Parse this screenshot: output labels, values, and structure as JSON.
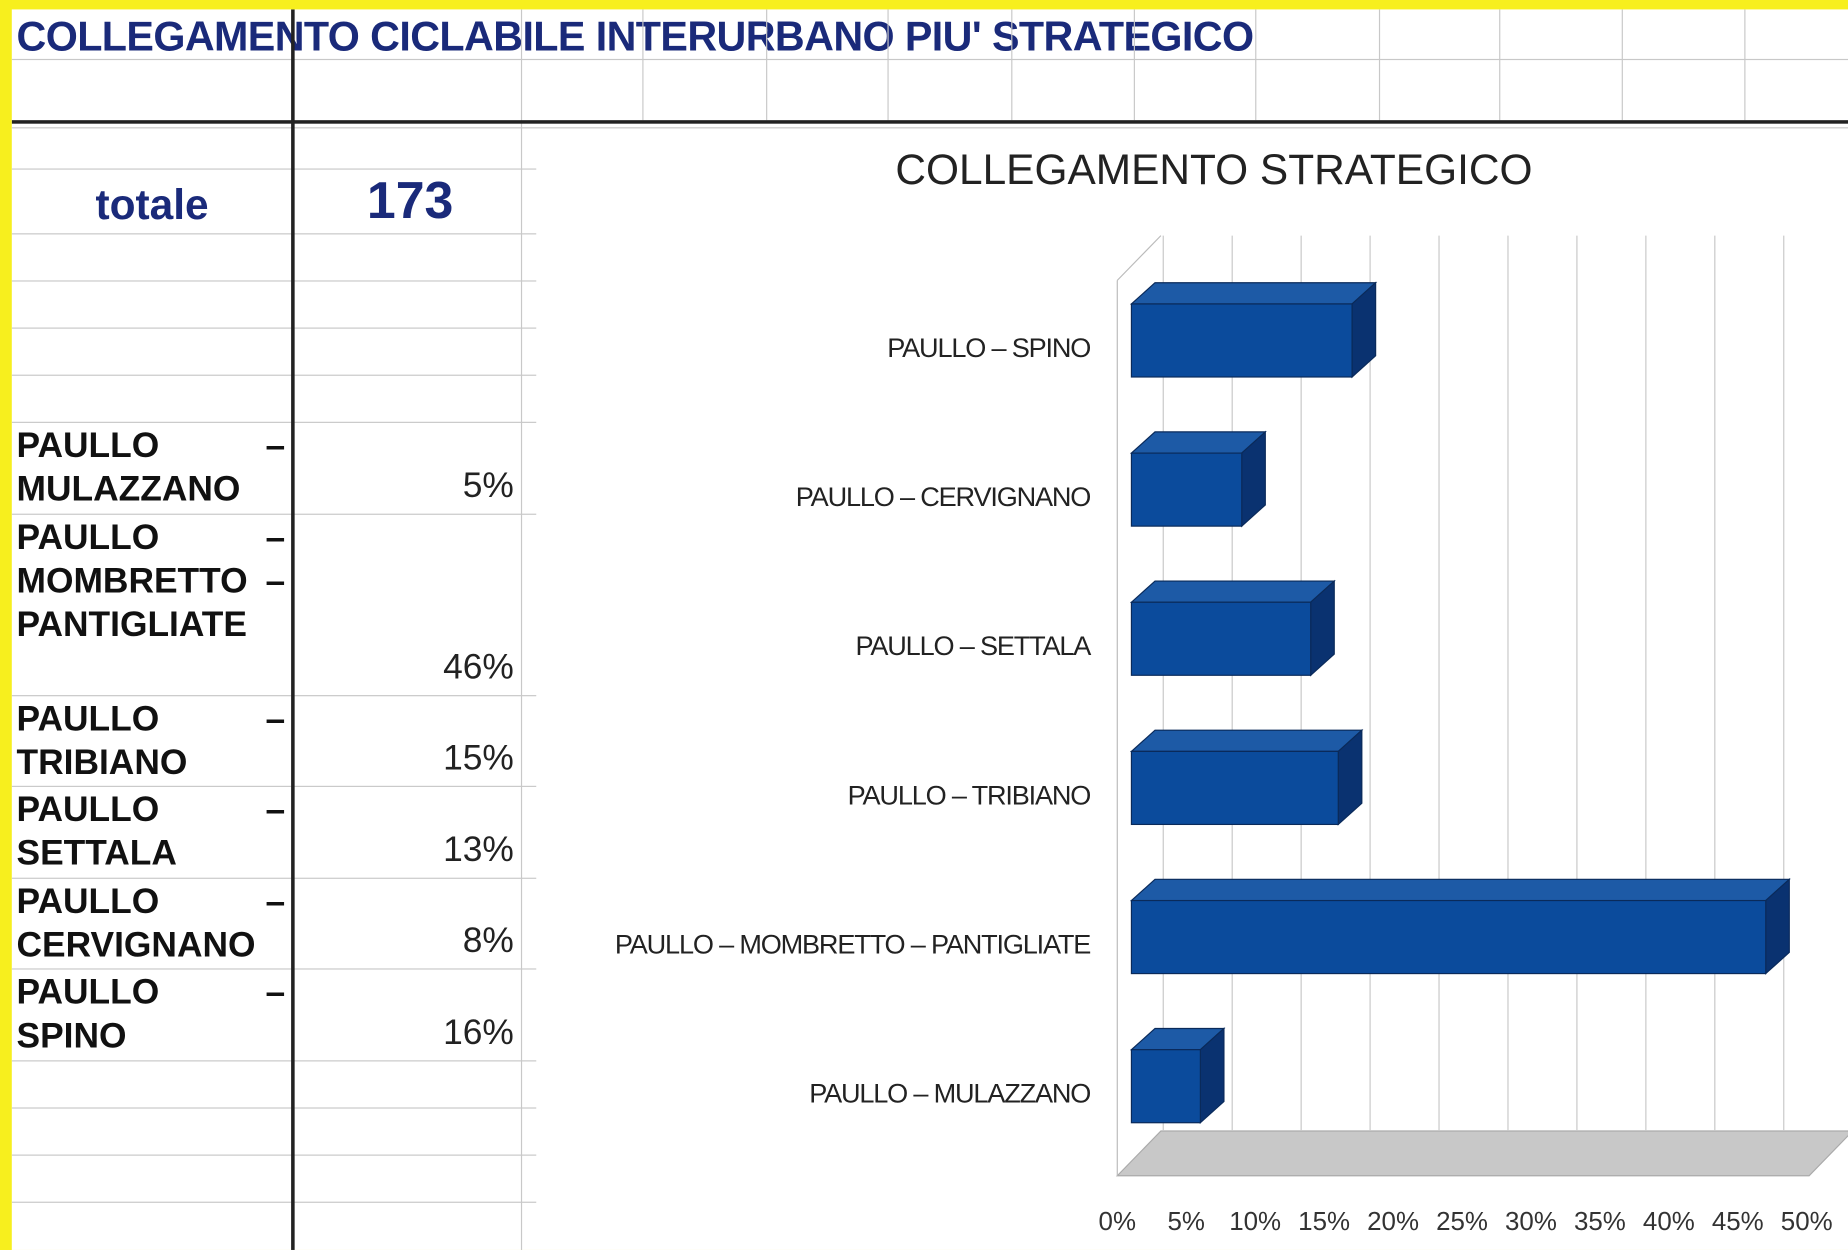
{
  "sheet": {
    "title": "COLLEGAMENTO CICLABILE INTERURBANO PIU' STRATEGICO",
    "total_label": "totale",
    "total_value": "173",
    "rows": [
      {
        "label": "PAULLO – MULAZZANO",
        "value": "5%"
      },
      {
        "label": "PAULLO – MOMBRETTO – PANTIGLIATE",
        "value": "46%"
      },
      {
        "label": "PAULLO – TRIBIANO",
        "value": "15%"
      },
      {
        "label": "PAULLO – SETTALA",
        "value": "13%"
      },
      {
        "label": "PAULLO – CERVIGNANO",
        "value": "8%"
      },
      {
        "label": "PAULLO – SPINO",
        "value": "16%"
      }
    ]
  },
  "chart_data": {
    "type": "bar3d",
    "orientation": "horizontal",
    "title": "COLLEGAMENTO STRATEGICO",
    "categories": [
      "PAULLO – SPINO",
      "PAULLO – CERVIGNANO",
      "PAULLO – SETTALA",
      "PAULLO – TRIBIANO",
      "PAULLO – MOMBRETTO – PANTIGLIATE",
      "PAULLO – MULAZZANO"
    ],
    "values": [
      16,
      8,
      13,
      15,
      46,
      5
    ],
    "color": "#0b4b9c",
    "xlim": [
      0,
      50
    ],
    "xticks": [
      {
        "value": 0,
        "label": "0%"
      },
      {
        "value": 5,
        "label": "5%"
      },
      {
        "value": 10,
        "label": "10%"
      },
      {
        "value": 15,
        "label": "15%"
      },
      {
        "value": 20,
        "label": "20%"
      },
      {
        "value": 25,
        "label": "25%"
      },
      {
        "value": 30,
        "label": "30%"
      },
      {
        "value": 35,
        "label": "35%"
      },
      {
        "value": 40,
        "label": "40%"
      },
      {
        "value": 45,
        "label": "45%"
      },
      {
        "value": 50,
        "label": "50%"
      }
    ],
    "grid": true
  }
}
